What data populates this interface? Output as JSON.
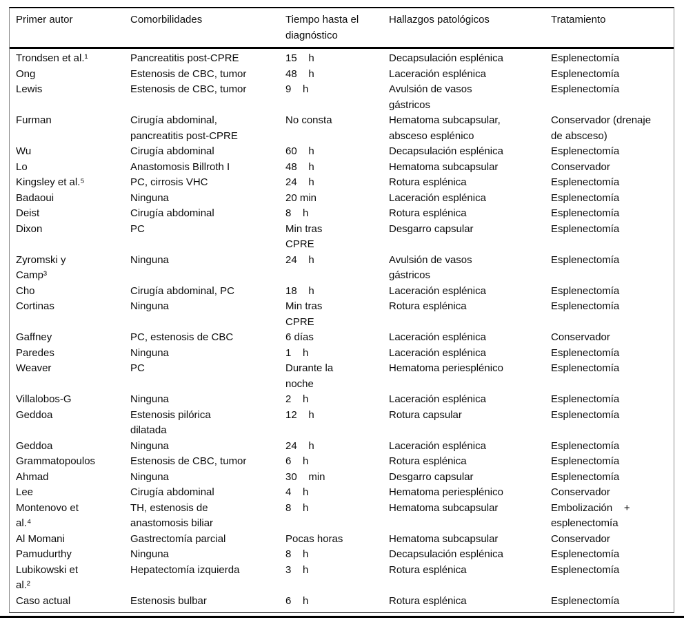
{
  "table": {
    "headers": [
      "Primer autor",
      "Comorbilidades",
      "Tiempo hasta el\ndiagnóstico",
      "Hallazgos patológicos",
      "Tratamiento"
    ],
    "row_fields": [
      "author",
      "comorbidities",
      "time",
      "findings",
      "treatment"
    ],
    "rows": [
      {
        "author": "Trondsen et al.¹",
        "comorbidities": "Pancreatitis post-CPRE",
        "time": "15    h",
        "findings": "Decapsulación esplénica",
        "treatment": "Esplenectomía"
      },
      {
        "author": "Ong",
        "comorbidities": "Estenosis de CBC, tumor",
        "time": "48    h",
        "findings": "Laceración esplénica",
        "treatment": "Esplenectomía"
      },
      {
        "author": "Lewis",
        "comorbidities": "Estenosis de CBC, tumor",
        "time": "9    h",
        "findings": "Avulsión de vasos\ngástricos",
        "treatment": "Esplenectomía"
      },
      {
        "author": "Furman",
        "comorbidities": "Cirugía abdominal,\npancreatitis post-CPRE",
        "time": "No consta",
        "findings": "Hematoma subcapsular,\nabsceso esplénico",
        "treatment": "Conservador (drenaje\nde absceso)"
      },
      {
        "author": "Wu",
        "comorbidities": "Cirugía abdominal",
        "time": "60    h",
        "findings": "Decapsulación esplénica",
        "treatment": "Esplenectomía"
      },
      {
        "author": "Lo",
        "comorbidities": "Anastomosis Billroth I",
        "time": "48    h",
        "findings": "Hematoma subcapsular",
        "treatment": "Conservador"
      },
      {
        "author": "Kingsley et al.⁵",
        "comorbidities": "PC, cirrosis VHC",
        "time": "24    h",
        "findings": "Rotura esplénica",
        "treatment": "Esplenectomía"
      },
      {
        "author": "Badaoui",
        "comorbidities": "Ninguna",
        "time": "20 min",
        "findings": "Laceración esplénica",
        "treatment": "Esplenectomía"
      },
      {
        "author": "Deist",
        "comorbidities": "Cirugía abdominal",
        "time": "8    h",
        "findings": "Rotura esplénica",
        "treatment": "Esplenectomía"
      },
      {
        "author": "Dixon",
        "comorbidities": "PC",
        "time": "Min tras\nCPRE",
        "findings": "Desgarro capsular",
        "treatment": "Esplenectomía"
      },
      {
        "author": "Zyromski y\nCamp³",
        "comorbidities": "Ninguna",
        "time": "24    h",
        "findings": "Avulsión de vasos\ngástricos",
        "treatment": "Esplenectomía"
      },
      {
        "author": "Cho",
        "comorbidities": "Cirugía abdominal, PC",
        "time": "18    h",
        "findings": "Laceración esplénica",
        "treatment": "Esplenectomía"
      },
      {
        "author": "Cortinas",
        "comorbidities": "Ninguna",
        "time": "Min tras\nCPRE",
        "findings": "Rotura esplénica",
        "treatment": "Esplenectomía"
      },
      {
        "author": "Gaffney",
        "comorbidities": "PC, estenosis de CBC",
        "time": "6 días",
        "findings": "Laceración esplénica",
        "treatment": "Conservador"
      },
      {
        "author": "Paredes",
        "comorbidities": "Ninguna",
        "time": "1    h",
        "findings": "Laceración esplénica",
        "treatment": "Esplenectomía"
      },
      {
        "author": "Weaver",
        "comorbidities": "PC",
        "time": "Durante la\nnoche",
        "findings": "Hematoma periesplénico",
        "treatment": "Esplenectomía"
      },
      {
        "author": "Villalobos-G",
        "comorbidities": "Ninguna",
        "time": "2    h",
        "findings": "Laceración esplénica",
        "treatment": "Esplenectomía"
      },
      {
        "author": "Geddoa",
        "comorbidities": "Estenosis pilórica\ndilatada",
        "time": "12    h",
        "findings": "Rotura capsular",
        "treatment": "Esplenectomía"
      },
      {
        "author": "Geddoa",
        "comorbidities": "Ninguna",
        "time": "24    h",
        "findings": "Laceración esplénica",
        "treatment": "Esplenectomía"
      },
      {
        "author": "Grammatopoulos",
        "comorbidities": "Estenosis de CBC, tumor",
        "time": "6    h",
        "findings": "Rotura esplénica",
        "treatment": "Esplenectomía"
      },
      {
        "author": "Ahmad",
        "comorbidities": "Ninguna",
        "time": "30    min",
        "findings": "Desgarro capsular",
        "treatment": "Esplenectomía"
      },
      {
        "author": "Lee",
        "comorbidities": "Cirugía abdominal",
        "time": "4    h",
        "findings": "Hematoma periesplénico",
        "treatment": "Conservador"
      },
      {
        "author": "Montenovo et\nal.⁴",
        "comorbidities": "TH, estenosis de\nanastomosis biliar",
        "time": "8    h",
        "findings": "Hematoma subcapsular",
        "treatment": "Embolización    +\nesplenectomía"
      },
      {
        "author": "Al Momani",
        "comorbidities": "Gastrectomía parcial",
        "time": "Pocas horas",
        "findings": "Hematoma subcapsular",
        "treatment": "Conservador"
      },
      {
        "author": "Pamudurthy",
        "comorbidities": "Ninguna",
        "time": "8    h",
        "findings": "Decapsulación esplénica",
        "treatment": "Esplenectomía"
      },
      {
        "author": "Lubikowski et\nal.²",
        "comorbidities": "Hepatectomía izquierda",
        "time": "3    h",
        "findings": "Rotura esplénica",
        "treatment": "Esplenectomía"
      },
      {
        "author": "Caso actual",
        "comorbidities": "Estenosis bulbar",
        "time": "6    h",
        "findings": "Rotura esplénica",
        "treatment": "Esplenectomía"
      }
    ]
  }
}
